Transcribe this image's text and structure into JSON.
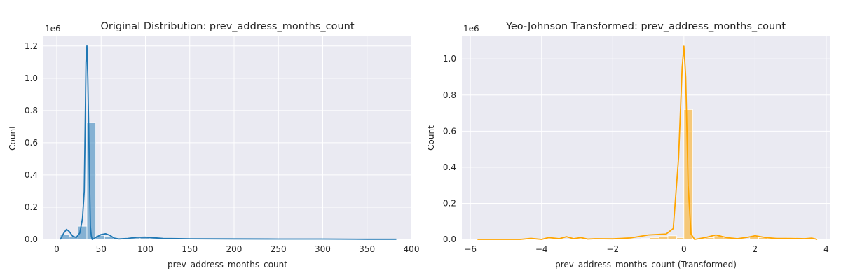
{
  "chart_data": [
    {
      "type": "histogram",
      "title": "Original Distribution: prev_address_months_count",
      "xlabel": "prev_address_months_count",
      "ylabel": "Count",
      "offset_label": "1e6",
      "xlim": [
        -15,
        400
      ],
      "ylim": [
        0,
        1.26
      ],
      "xticks": [
        0,
        50,
        100,
        150,
        200,
        250,
        300,
        350,
        400
      ],
      "yticks": [
        0.0,
        0.2,
        0.4,
        0.6,
        0.8,
        1.0,
        1.2
      ],
      "xtick_labels": [
        "0",
        "50",
        "100",
        "150",
        "200",
        "250",
        "300",
        "350",
        "400"
      ],
      "ytick_labels": [
        "0.0",
        "0.2",
        "0.4",
        "0.6",
        "0.8",
        "1.0",
        "1.2"
      ],
      "grid": true,
      "color": "#1f77b4",
      "bins": [
        {
          "x0": 4,
          "x1": 14,
          "value": 0.03
        },
        {
          "x0": 14,
          "x1": 24,
          "value": 0.016
        },
        {
          "x0": 24,
          "x1": 34,
          "value": 0.082
        },
        {
          "x0": 34,
          "x1": 44,
          "value": 0.725
        },
        {
          "x0": 44,
          "x1": 54,
          "value": 0.025
        },
        {
          "x0": 54,
          "x1": 64,
          "value": 0.02
        },
        {
          "x0": 64,
          "x1": 74,
          "value": 0.006
        },
        {
          "x0": 74,
          "x1": 84,
          "value": 0.005
        },
        {
          "x0": 84,
          "x1": 94,
          "value": 0.01
        },
        {
          "x0": 94,
          "x1": 104,
          "value": 0.012
        },
        {
          "x0": 104,
          "x1": 114,
          "value": 0.008
        }
      ],
      "kde": {
        "x": [
          4,
          8,
          11,
          14,
          18,
          22,
          26,
          29,
          31,
          32,
          33,
          34,
          35,
          36,
          37,
          38,
          39,
          40,
          42,
          45,
          50,
          55,
          60,
          65,
          70,
          80,
          90,
          100,
          110,
          120,
          150,
          200,
          250,
          300,
          350,
          383
        ],
        "y": [
          0.0,
          0.04,
          0.062,
          0.05,
          0.02,
          0.012,
          0.04,
          0.13,
          0.3,
          0.7,
          1.1,
          1.2,
          1.0,
          0.7,
          0.35,
          0.08,
          0.02,
          0.0,
          0.005,
          0.015,
          0.03,
          0.035,
          0.025,
          0.008,
          0.003,
          0.006,
          0.013,
          0.014,
          0.01,
          0.006,
          0.004,
          0.003,
          0.002,
          0.002,
          0.001,
          0.001
        ]
      }
    },
    {
      "type": "histogram",
      "title": "Yeo-Johnson Transformed: prev_address_months_count",
      "xlabel": "prev_address_months_count (Transformed)",
      "ylabel": "Count",
      "offset_label": "1e6",
      "xlim": [
        -6.24,
        4.1
      ],
      "ylim": [
        0,
        1.125
      ],
      "xticks": [
        -6,
        -4,
        -2,
        0,
        2,
        4
      ],
      "yticks": [
        0.0,
        0.2,
        0.4,
        0.6,
        0.8,
        1.0
      ],
      "xtick_labels": [
        "−6",
        "−4",
        "−2",
        "0",
        "2",
        "4"
      ],
      "ytick_labels": [
        "0.0",
        "0.2",
        "0.4",
        "0.6",
        "0.8",
        "1.0"
      ],
      "grid": true,
      "color": "#ffa500",
      "bins": [
        {
          "x0": -1.2,
          "x1": -0.95,
          "value": 0.005
        },
        {
          "x0": -0.95,
          "x1": -0.7,
          "value": 0.01
        },
        {
          "x0": -0.7,
          "x1": -0.45,
          "value": 0.018
        },
        {
          "x0": -0.45,
          "x1": -0.2,
          "value": 0.02
        },
        {
          "x0": -0.2,
          "x1": 0.0,
          "value": 0.01
        },
        {
          "x0": 0.0,
          "x1": 0.25,
          "value": 0.72
        },
        {
          "x0": 0.25,
          "x1": 0.6,
          "value": 0.005
        },
        {
          "x0": 0.6,
          "x1": 0.85,
          "value": 0.01
        },
        {
          "x0": 0.85,
          "x1": 1.1,
          "value": 0.02
        },
        {
          "x0": 1.1,
          "x1": 1.35,
          "value": 0.01
        },
        {
          "x0": 1.85,
          "x1": 2.1,
          "value": 0.015
        },
        {
          "x0": 2.1,
          "x1": 2.35,
          "value": 0.01
        },
        {
          "x0": 2.9,
          "x1": 3.15,
          "value": 0.008
        },
        {
          "x0": 3.5,
          "x1": 3.75,
          "value": 0.005
        }
      ],
      "kde": {
        "x": [
          -5.8,
          -4.6,
          -4.3,
          -4.0,
          -3.8,
          -3.5,
          -3.3,
          -3.1,
          -2.9,
          -2.7,
          -2.5,
          -2.0,
          -1.5,
          -1.0,
          -0.5,
          -0.3,
          -0.15,
          -0.05,
          0.0,
          0.05,
          0.12,
          0.2,
          0.3,
          0.6,
          0.9,
          1.2,
          1.5,
          1.8,
          2.0,
          2.3,
          2.6,
          3.0,
          3.4,
          3.6,
          3.75
        ],
        "y": [
          0.0,
          0.0,
          0.006,
          0.0,
          0.01,
          0.004,
          0.015,
          0.004,
          0.01,
          0.002,
          0.004,
          0.003,
          0.008,
          0.025,
          0.03,
          0.06,
          0.45,
          0.95,
          1.07,
          0.9,
          0.3,
          0.03,
          0.0,
          0.01,
          0.025,
          0.01,
          0.004,
          0.012,
          0.02,
          0.01,
          0.005,
          0.005,
          0.004,
          0.007,
          0.0
        ]
      }
    }
  ]
}
